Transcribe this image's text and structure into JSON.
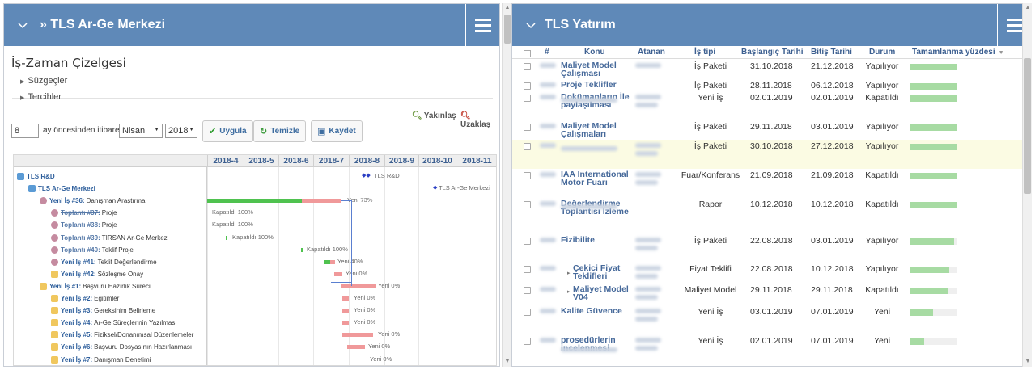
{
  "left_panel": {
    "title": "» TLS Ar-Ge Merkezi",
    "section_title": "İş-Zaman Çizelgesi",
    "filters_label": "Süzgeçler",
    "prefs_label": "Tercihler",
    "zoom_in_label": "Yakınlaş",
    "zoom_out_label": "Uzaklaş",
    "months_value": "8",
    "months_text": "ay öncesinden itibaren",
    "month_select": "Nisan",
    "year_select": "2018",
    "apply_label": "Uygula",
    "clear_label": "Temizle",
    "save_label": "Kaydet",
    "gantt_months": [
      "2018-4",
      "2018-5",
      "2018-6",
      "2018-7",
      "2018-8",
      "2018-9",
      "2018-10",
      "2018-11"
    ],
    "tasks": [
      {
        "id": "",
        "name": "TLS R&D",
        "desc": "",
        "strike": false,
        "level": 0,
        "icon": "project-icon"
      },
      {
        "id": "",
        "name": "TLS Ar-Ge Merkezi",
        "desc": "",
        "strike": false,
        "level": 1,
        "icon": "project-icon"
      },
      {
        "id": "",
        "name": "Yeni İş #36:",
        "desc": "Danışman Araştırma",
        "strike": false,
        "level": 2,
        "icon": "task-group-icon"
      },
      {
        "id": "",
        "name": "Toplantı #37:",
        "desc": "Proje",
        "strike": true,
        "level": 3,
        "icon": "task-icon"
      },
      {
        "id": "",
        "name": "Toplantı #38:",
        "desc": "Proje",
        "strike": true,
        "level": 3,
        "icon": "task-icon"
      },
      {
        "id": "",
        "name": "Toplantı #39:",
        "desc": "TIRSAN Ar-Ge Merkezi",
        "strike": true,
        "level": 3,
        "icon": "task-icon"
      },
      {
        "id": "",
        "name": "Toplantı #40:",
        "desc": "Teklif Proje",
        "strike": true,
        "level": 3,
        "icon": "task-icon"
      },
      {
        "id": "",
        "name": "Yeni İş #41:",
        "desc": "Teklif Değerlendirme",
        "strike": false,
        "level": 3,
        "icon": "task-icon"
      },
      {
        "id": "",
        "name": "Yeni İş #42:",
        "desc": "Sözleşme Onay",
        "strike": false,
        "level": 3,
        "icon": "folder-icon"
      },
      {
        "id": "",
        "name": "Yeni İş #1:",
        "desc": "Başvuru Hazırlık Süreci",
        "strike": false,
        "level": 2,
        "icon": "folder-icon"
      },
      {
        "id": "",
        "name": "Yeni İş #2:",
        "desc": "Eğitimler",
        "strike": false,
        "level": 3,
        "icon": "folder-icon"
      },
      {
        "id": "",
        "name": "Yeni İş #3:",
        "desc": "Gereksinim Belirleme",
        "strike": false,
        "level": 3,
        "icon": "folder-icon"
      },
      {
        "id": "",
        "name": "Yeni İş #4:",
        "desc": "Ar-Ge Süreçlerinin Yazılması",
        "strike": false,
        "level": 3,
        "icon": "folder-icon"
      },
      {
        "id": "",
        "name": "Yeni İş #5:",
        "desc": "Fiziksel/Donanımsal Düzenlemeler",
        "strike": false,
        "level": 3,
        "icon": "folder-icon"
      },
      {
        "id": "",
        "name": "Yeni İş #6:",
        "desc": "Başvuru Dosyasının Hazırlanması",
        "strike": false,
        "level": 3,
        "icon": "folder-icon"
      },
      {
        "id": "",
        "name": "Yeni İş #7:",
        "desc": "Danışman Denetimi",
        "strike": false,
        "level": 3,
        "icon": "folder-icon"
      }
    ],
    "bar_labels": {
      "r0": "TLS R&D",
      "r1": "TLS Ar-Ge Merkezi",
      "r2": "Yeni 73%",
      "r3": "Kapatıldı 100%",
      "r4": "Kapatıldı 100%",
      "r5": "Kapatıldı 100%",
      "r6": "Kapatıldı 100%",
      "r7": "Yeni 40%",
      "r8": "Yeni 0%",
      "r9": "Yeni 0%",
      "r10": "Yeni 0%",
      "r11": "Yeni 0%",
      "r12": "Yeni 0%",
      "r13": "Yeni 0%",
      "r14": "Yeni 0%",
      "r15": "Yeni 0%"
    }
  },
  "right_panel": {
    "title": "TLS Yatırım",
    "columns": {
      "num": "#",
      "konu": "Konu",
      "atanan": "Atanan",
      "is_tipi": "İş tipi",
      "baslangic": "Başlangıç Tarihi",
      "bitis": "Bitiş Tarihi",
      "durum": "Durum",
      "tamamlanma": "Tamamlanma yüzdesi"
    },
    "rows": [
      {
        "konu": "Maliyet Model Çalışması",
        "is_tipi": "İş Paketi",
        "baslangic": "31.10.2018",
        "bitis": "21.12.2018",
        "durum": "Yapılıyor",
        "progress": 1.0
      },
      {
        "konu": "Proje Teklifler",
        "is_tipi": "İş Paketi",
        "baslangic": "28.11.2018",
        "bitis": "06.12.2018",
        "durum": "Yapılıyor",
        "progress": 1.0
      },
      {
        "konu": "Dokümanların İle paylaşılması",
        "is_tipi": "Yeni İş",
        "baslangic": "02.01.2019",
        "bitis": "02.01.2019",
        "durum": "Kapatıldı",
        "progress": 1.0
      },
      {
        "konu": "Maliyet Model Çalışmaları",
        "is_tipi": "İş Paketi",
        "baslangic": "29.11.2018",
        "bitis": "03.01.2019",
        "durum": "Yapılıyor",
        "progress": 1.0
      },
      {
        "konu": "",
        "is_tipi": "İş Paketi",
        "baslangic": "30.10.2018",
        "bitis": "27.12.2018",
        "durum": "Yapılıyor",
        "progress": 1.0
      },
      {
        "konu": "IAA International Motor Fuarı",
        "is_tipi": "Fuar/Konferans",
        "baslangic": "21.09.2018",
        "bitis": "21.09.2018",
        "durum": "Kapatıldı",
        "progress": 1.0
      },
      {
        "konu": "Değerlendirme Toplantısı İzleme",
        "is_tipi": "Rapor",
        "baslangic": "10.12.2018",
        "bitis": "10.12.2018",
        "durum": "Kapatıldı",
        "progress": 1.0
      },
      {
        "konu": "Fizibilite",
        "is_tipi": "İş Paketi",
        "baslangic": "22.08.2018",
        "bitis": "03.01.2019",
        "durum": "Yapılıyor",
        "progress": 0.93
      },
      {
        "konu": "Çekici Fiyat Teklifleri",
        "is_tipi": "Fiyat Teklifi",
        "baslangic": "22.08.2018",
        "bitis": "10.12.2018",
        "durum": "Yapılıyor",
        "progress": 0.83
      },
      {
        "konu": "Maliyet Model V04",
        "is_tipi": "Maliyet Model",
        "baslangic": "29.11.2018",
        "bitis": "29.11.2018",
        "durum": "Kapatıldı",
        "progress": 0.8
      },
      {
        "konu": "Kalite Güvence",
        "is_tipi": "Yeni İş",
        "baslangic": "03.01.2019",
        "bitis": "07.01.2019",
        "durum": "Yeni",
        "progress": 0.48
      },
      {
        "konu": "prosedürlerin incelenmesi",
        "is_tipi": "Yeni İş",
        "baslangic": "02.01.2019",
        "bitis": "07.01.2019",
        "durum": "Yeni",
        "progress": 0.3
      }
    ]
  },
  "colors": {
    "header": "#5f89b8",
    "link": "#2e5f9c",
    "green": "#4fc24f",
    "red": "#f0999a",
    "progress": "#a7dba3",
    "highlight": "#fbfbe3"
  }
}
